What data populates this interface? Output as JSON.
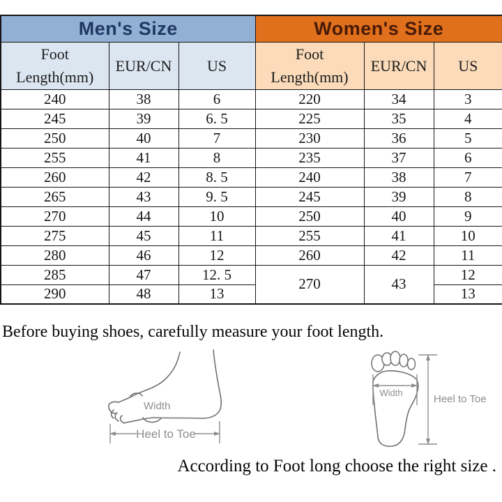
{
  "colors": {
    "men_title_bg": "#92b0d3",
    "men_title_text": "#1f3864",
    "men_header_bg": "#dce6f1",
    "women_title_bg": "#e0701c",
    "women_title_text": "#4a1b07",
    "women_header_bg": "#fbdbb9",
    "border": "#151515",
    "diagram_stroke": "#6f6f6f",
    "diagram_label": "#8d8d8d"
  },
  "chart_data": [
    {
      "type": "table",
      "title": "Men's Size",
      "columns": [
        "Foot Length(mm)",
        "EUR/CN",
        "US"
      ],
      "rows": [
        [
          "240",
          "38",
          "6"
        ],
        [
          "245",
          "39",
          "6. 5"
        ],
        [
          "250",
          "40",
          "7"
        ],
        [
          "255",
          "41",
          "8"
        ],
        [
          "260",
          "42",
          "8. 5"
        ],
        [
          "265",
          "43",
          "9. 5"
        ],
        [
          "270",
          "44",
          "10"
        ],
        [
          "275",
          "45",
          "11"
        ],
        [
          "280",
          "46",
          "12"
        ],
        [
          "285",
          "47",
          "12. 5"
        ],
        [
          "290",
          "48",
          "13"
        ]
      ]
    },
    {
      "type": "table",
      "title": "Women's Size",
      "columns": [
        "Foot Length(mm)",
        "EUR/CN",
        "US"
      ],
      "rows": [
        [
          "220",
          "34",
          "3"
        ],
        [
          "225",
          "35",
          "4"
        ],
        [
          "230",
          "36",
          "5"
        ],
        [
          "235",
          "37",
          "6"
        ],
        [
          "240",
          "38",
          "7"
        ],
        [
          "245",
          "39",
          "8"
        ],
        [
          "250",
          "40",
          "9"
        ],
        [
          "255",
          "41",
          "10"
        ],
        [
          "260",
          "42",
          "11"
        ]
      ],
      "merged_tail": {
        "foot_length": "270",
        "eur_cn": "43",
        "us": [
          "12",
          "13"
        ]
      }
    }
  ],
  "notes": {
    "measure_note": "Before buying shoes, carefully measure your foot length.",
    "choose_note": "According to Foot long choose the right size ."
  },
  "diagrams": {
    "side_foot": {
      "width_label": "Width",
      "heel_to_toe_label": "Heel to Toe"
    },
    "sole_foot": {
      "width_label": "Width",
      "heel_to_toe_label": "Heel to Toe"
    }
  }
}
